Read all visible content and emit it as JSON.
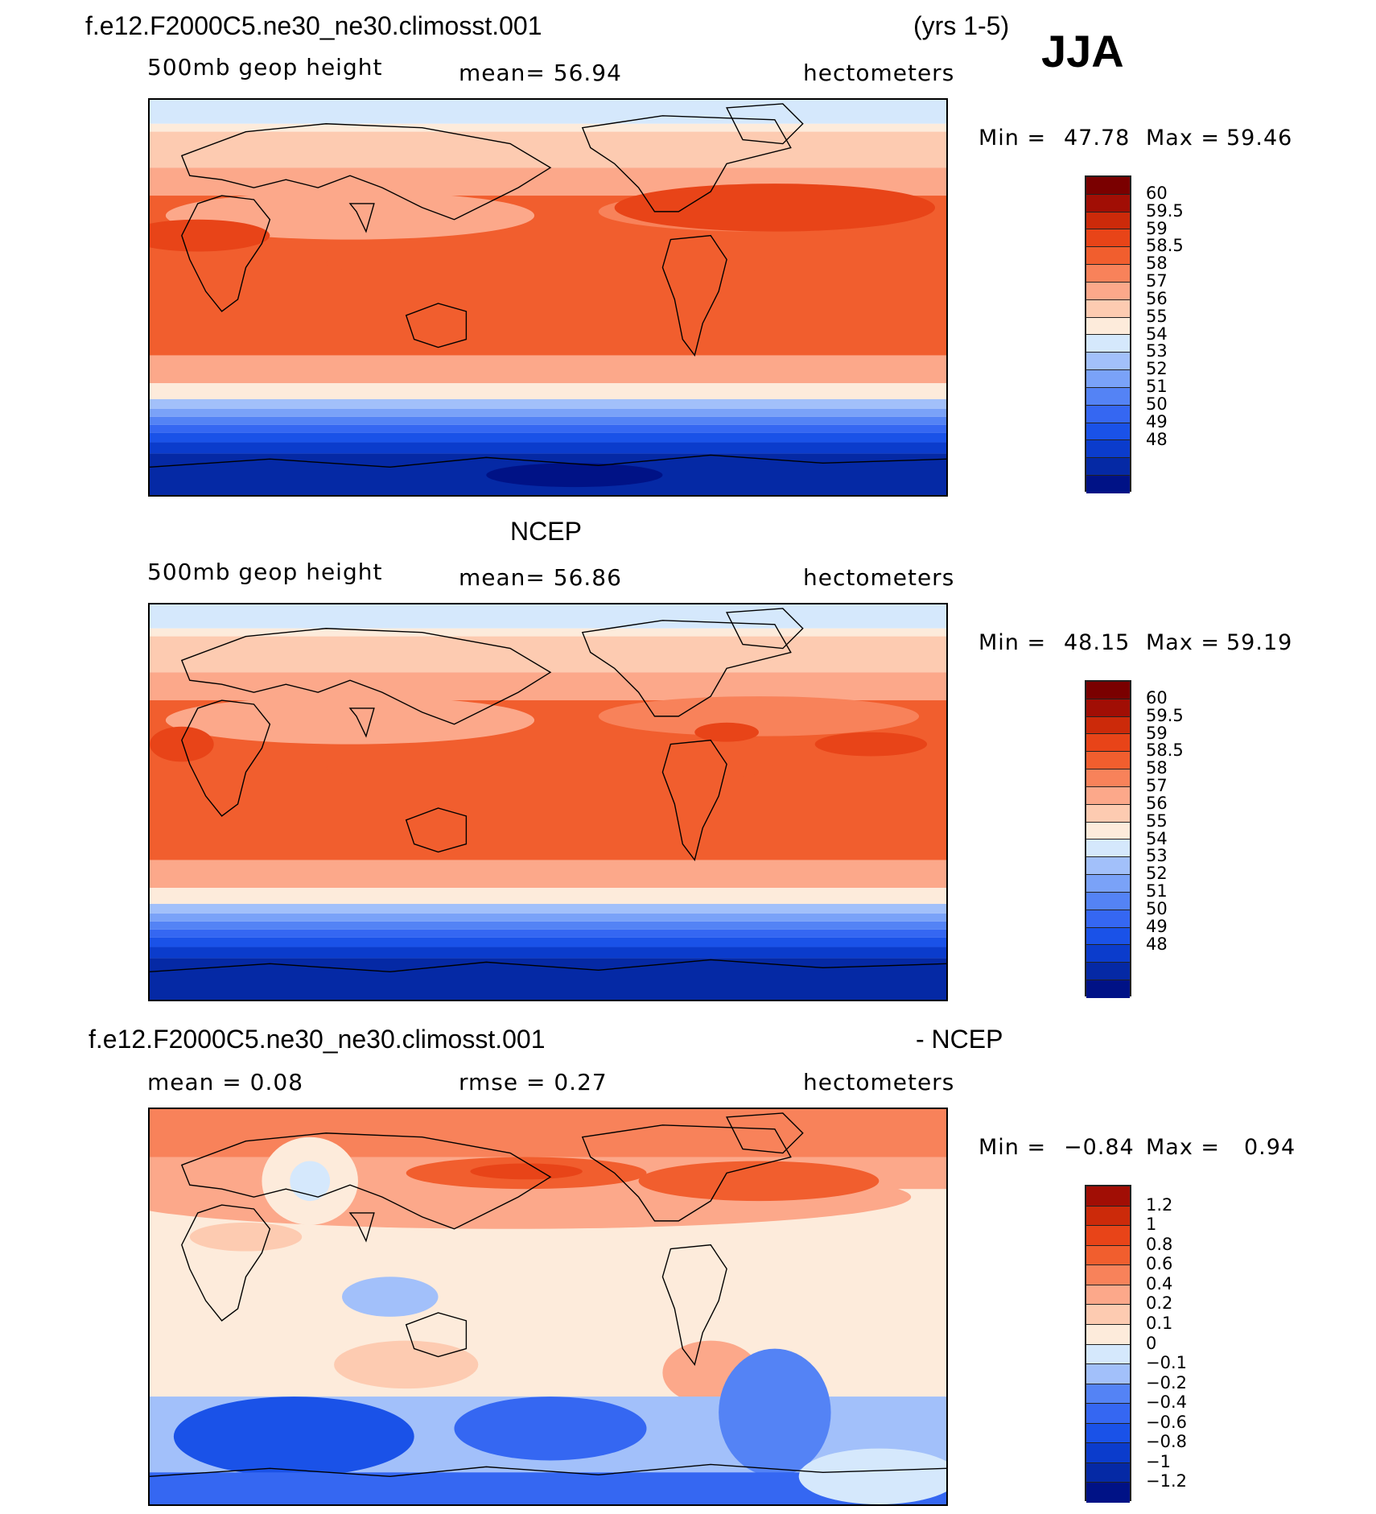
{
  "season": "JJA",
  "colors": {
    "abs": [
      "#001286",
      "#0529a5",
      "#0b3ccc",
      "#1a52e8",
      "#3567f2",
      "#5483f5",
      "#7aa2f8",
      "#a2c0fa",
      "#d5e8fc",
      "#fdebdb",
      "#fdcbb1",
      "#fca88a",
      "#f8825a",
      "#f15e2e",
      "#e84418",
      "#cc2a0a",
      "#a10e05",
      "#7a0000"
    ],
    "diff": [
      "#001286",
      "#0529a5",
      "#0b3ccc",
      "#1a52e8",
      "#3567f2",
      "#5483f5",
      "#a2c0fa",
      "#d5e8fc",
      "#fdebdb",
      "#fdcbb1",
      "#fca88a",
      "#f8825a",
      "#f15e2e",
      "#e84418",
      "#cc2a0a",
      "#a10e05"
    ],
    "land": "#000000"
  },
  "panels": [
    {
      "header_left": "f.e12.F2000C5.ne30_ne30.climosst.001",
      "header_right": "(yrs 1-5)",
      "sub_left": "500mb  geop  height",
      "sub_center": "mean=   56.94",
      "sub_right": "hectometers",
      "min_label": "Min  =",
      "min_value": "47.78",
      "max_label": "Max  =",
      "max_value": "59.46",
      "kind": "abs",
      "levels": [
        "60",
        "59.5",
        "59",
        "58.5",
        "58",
        "57",
        "56",
        "55",
        "54",
        "53",
        "52",
        "51",
        "50",
        "49",
        "48"
      ]
    },
    {
      "header_center": "NCEP",
      "sub_left": "500mb  geop  height",
      "sub_center": "mean=   56.86",
      "sub_right": "hectometers",
      "min_label": "Min  =",
      "min_value": "48.15",
      "max_label": "Max  =",
      "max_value": "59.19",
      "kind": "abs",
      "levels": [
        "60",
        "59.5",
        "59",
        "58.5",
        "58",
        "57",
        "56",
        "55",
        "54",
        "53",
        "52",
        "51",
        "50",
        "49",
        "48"
      ]
    },
    {
      "header_left": "f.e12.F2000C5.ne30_ne30.climosst.001",
      "header_right": "- NCEP",
      "sub_left": "mean  =    0.08",
      "sub_center": "rmse  =    0.27",
      "sub_right": "hectometers",
      "min_label": "Min  =",
      "min_value": "−0.84",
      "max_label": "Max  =",
      "max_value": "0.94",
      "kind": "diff",
      "levels": [
        "1.2",
        "1",
        "0.8",
        "0.6",
        "0.4",
        "0.2",
        "0.1",
        "0",
        "−0.1",
        "−0.2",
        "−0.4",
        "−0.6",
        "−0.8",
        "−1",
        "−1.2"
      ]
    }
  ]
}
